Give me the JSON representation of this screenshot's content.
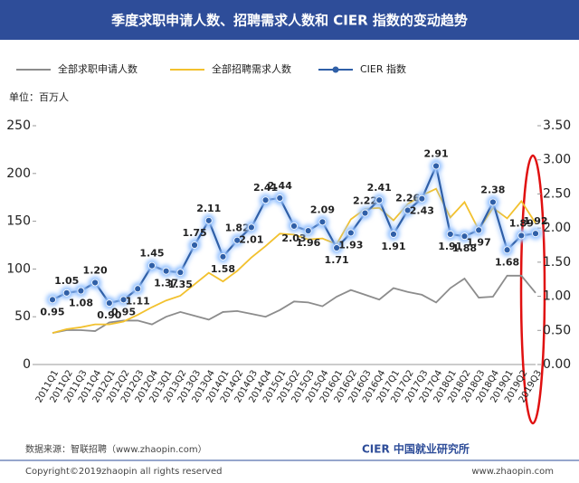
{
  "chart_data": {
    "type": "line",
    "title": "季度求职申请人数、招聘需求人数和 CIER 指数的变动趋势",
    "unit_label": "单位：百万人",
    "source": "数据来源：智联招聘（www.zhaopin.com）",
    "copyright": "Copyright©2019zhaopin all rights reserved",
    "website": "www.zhaopin.com",
    "logo_text": "CIER 中国就业研究所",
    "categories": [
      "2011Q1",
      "2011Q2",
      "2011Q3",
      "2011Q4",
      "2012Q1",
      "2012Q2",
      "2012Q3",
      "2012Q4",
      "2013Q1",
      "2013Q2",
      "2013Q3",
      "2013Q4",
      "2014Q1",
      "2014Q2",
      "2014Q3",
      "2014Q4",
      "2015Q1",
      "2015Q2",
      "2015Q3",
      "2015Q4",
      "2016Q1",
      "2016Q2",
      "2016Q3",
      "2016Q4",
      "2017Q1",
      "2017Q2",
      "2017Q3",
      "2017Q4",
      "2018Q1",
      "2018Q2",
      "2018Q3",
      "2018Q4",
      "2019Q1",
      "2019Q2",
      "2019Q3"
    ],
    "series": [
      {
        "name": "全部求职申请人数",
        "color": "#8c8c8c",
        "values": [
          33,
          36,
          36,
          35,
          44,
          46,
          46,
          42,
          50,
          55,
          51,
          47,
          55,
          56,
          53,
          50,
          57,
          66,
          65,
          61,
          71,
          78,
          73,
          68,
          80,
          76,
          73,
          65,
          80,
          90,
          70,
          71,
          93,
          93,
          75
        ]
      },
      {
        "name": "全部招聘需求人数",
        "color": "#f2c12e",
        "values": [
          33,
          37,
          39,
          42,
          42,
          45,
          52,
          60,
          67,
          72,
          84,
          96,
          87,
          98,
          112,
          124,
          137,
          136,
          131,
          132,
          126,
          152,
          163,
          164,
          151,
          168,
          177,
          184,
          154,
          170,
          141,
          164,
          153,
          171,
          148
        ]
      },
      {
        "name": "CIER 指数",
        "color": "#2f5fa7",
        "axis": "y2",
        "values": [
          0.95,
          1.05,
          1.08,
          1.2,
          0.9,
          0.95,
          1.11,
          1.45,
          1.37,
          1.35,
          1.75,
          2.11,
          1.58,
          1.82,
          2.01,
          2.41,
          2.44,
          2.03,
          1.96,
          2.09,
          1.71,
          1.93,
          2.22,
          2.41,
          1.91,
          2.26,
          2.43,
          2.91,
          1.91,
          1.88,
          1.97,
          2.38,
          1.68,
          1.89,
          1.92
        ],
        "value_labels": [
          "0.95",
          "1.05",
          "1.08",
          "1.20",
          "0.90",
          "0.95",
          "1.11",
          "1.45",
          "1.37",
          "1.35",
          "1.75",
          "2.11",
          "1.58",
          "1.82",
          "2.01",
          "2.41",
          "2.44",
          "2.03",
          "1.96",
          "2.09",
          "1.71",
          "1.93",
          "2.22",
          "2.41",
          "1.91",
          "2.26",
          "2.43",
          "2.91",
          "1.91",
          "1.88",
          "1.97",
          "2.38",
          "1.68",
          "1.89",
          "1.92"
        ]
      }
    ],
    "ylim": [
      0,
      250
    ],
    "yticks": [
      0,
      50,
      100,
      150,
      200,
      250
    ],
    "y2lim": [
      0,
      3.5
    ],
    "y2ticks": [
      {
        "value": 0,
        "label": "0.00"
      },
      {
        "value": 0.5,
        "label": "0.50"
      },
      {
        "value": 1,
        "label": "1.00"
      },
      {
        "value": 1.5,
        "label": "1.50"
      },
      {
        "value": 2,
        "label": "2.00"
      },
      {
        "value": 2.5,
        "label": "2.50"
      },
      {
        "value": 3,
        "label": "3.00"
      },
      {
        "value": 3.5,
        "label": "3.50"
      }
    ],
    "grid": false
  }
}
